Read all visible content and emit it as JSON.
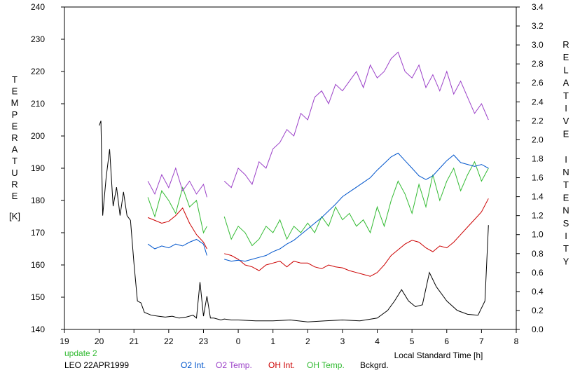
{
  "chart_data": {
    "type": "line",
    "xlabel": "Local Standard Time [h]",
    "ylabel_left": "TEMPERATURE",
    "ylabel_left_unit": "[K]",
    "ylabel_right": "RELATIVE INTENSITY",
    "x_axis": {
      "range": [
        19,
        8
      ],
      "ticks": [
        19,
        20,
        21,
        22,
        23,
        0,
        1,
        2,
        3,
        4,
        5,
        6,
        7,
        8
      ]
    },
    "y_left": {
      "range": [
        140,
        240
      ],
      "ticks": [
        140,
        150,
        160,
        170,
        180,
        190,
        200,
        210,
        220,
        230,
        240
      ]
    },
    "y_right": {
      "range": [
        0.0,
        3.4
      ],
      "ticks": [
        "0.0",
        "0.2",
        "0.4",
        "0.6",
        "0.8",
        "1.0",
        "1.2",
        "1.4",
        "1.6",
        "1.8",
        "2.0",
        "2.2",
        "2.4",
        "2.6",
        "2.8",
        "3.0",
        "3.2",
        "3.4"
      ]
    },
    "grid": false,
    "footer": {
      "status": "update 2",
      "station": "LEO 22APR1999"
    },
    "series": [
      {
        "name": "O2 Int.",
        "axis": "right",
        "color": "#0055cc",
        "x": [
          21.4,
          21.6,
          21.8,
          22.0,
          22.2,
          22.4,
          22.6,
          22.8,
          23.0,
          23.1,
          null,
          23.6,
          23.8,
          24.0,
          24.2,
          24.4,
          24.6,
          24.8,
          25.0,
          25.2,
          25.4,
          25.6,
          25.8,
          26.0,
          26.2,
          26.4,
          26.6,
          26.8,
          27.0,
          27.2,
          27.4,
          27.6,
          27.8,
          28.0,
          28.2,
          28.4,
          28.6,
          28.8,
          29.0,
          29.2,
          29.4,
          29.6,
          29.8,
          30.0,
          30.2,
          30.4,
          30.6,
          30.8,
          31.0,
          31.2
        ],
        "y": [
          0.9,
          0.85,
          0.88,
          0.86,
          0.9,
          0.88,
          0.92,
          0.95,
          0.9,
          0.78,
          null,
          0.74,
          0.72,
          0.73,
          0.72,
          0.74,
          0.76,
          0.78,
          0.82,
          0.85,
          0.9,
          0.94,
          1.0,
          1.06,
          1.12,
          1.18,
          1.25,
          1.32,
          1.4,
          1.45,
          1.5,
          1.55,
          1.6,
          1.68,
          1.75,
          1.82,
          1.86,
          1.78,
          1.7,
          1.62,
          1.58,
          1.62,
          1.7,
          1.78,
          1.84,
          1.76,
          1.74,
          1.72,
          1.74,
          1.7
        ]
      },
      {
        "name": "O2 Temp.",
        "axis": "left",
        "color": "#9b40c8",
        "x": [
          21.4,
          21.6,
          21.8,
          22.0,
          22.2,
          22.4,
          22.6,
          22.8,
          23.0,
          23.1,
          null,
          23.6,
          23.8,
          24.0,
          24.2,
          24.4,
          24.6,
          24.8,
          25.0,
          25.2,
          25.4,
          25.6,
          25.8,
          26.0,
          26.2,
          26.4,
          26.6,
          26.8,
          27.0,
          27.2,
          27.4,
          27.6,
          27.8,
          28.0,
          28.2,
          28.4,
          28.6,
          28.8,
          29.0,
          29.2,
          29.4,
          29.6,
          29.8,
          30.0,
          30.2,
          30.4,
          30.6,
          30.8,
          31.0,
          31.2
        ],
        "y": [
          186,
          182,
          188,
          184,
          190,
          183,
          186,
          182,
          185,
          181,
          null,
          186,
          184,
          190,
          188,
          185,
          192,
          190,
          196,
          198,
          202,
          200,
          207,
          205,
          212,
          214,
          210,
          216,
          214,
          217,
          220,
          215,
          222,
          218,
          220,
          224,
          226,
          220,
          218,
          222,
          215,
          219,
          214,
          220,
          213,
          217,
          212,
          207,
          210,
          205
        ]
      },
      {
        "name": "OH Int.",
        "axis": "right",
        "color": "#cc0000",
        "x": [
          21.4,
          21.6,
          21.8,
          22.0,
          22.2,
          22.4,
          22.6,
          22.8,
          23.0,
          23.1,
          null,
          23.6,
          23.8,
          24.0,
          24.2,
          24.4,
          24.6,
          24.8,
          25.0,
          25.2,
          25.4,
          25.6,
          25.8,
          26.0,
          26.2,
          26.4,
          26.6,
          26.8,
          27.0,
          27.2,
          27.4,
          27.6,
          27.8,
          28.0,
          28.2,
          28.4,
          28.6,
          28.8,
          29.0,
          29.2,
          29.4,
          29.6,
          29.8,
          30.0,
          30.2,
          30.4,
          30.6,
          30.8,
          31.0,
          31.2
        ],
        "y": [
          1.18,
          1.15,
          1.12,
          1.14,
          1.2,
          1.28,
          1.12,
          1.0,
          0.92,
          0.85,
          null,
          0.8,
          0.78,
          0.74,
          0.68,
          0.66,
          0.62,
          0.68,
          0.7,
          0.72,
          0.66,
          0.72,
          0.7,
          0.7,
          0.66,
          0.64,
          0.68,
          0.66,
          0.65,
          0.62,
          0.6,
          0.58,
          0.56,
          0.6,
          0.68,
          0.78,
          0.84,
          0.9,
          0.94,
          0.92,
          0.86,
          0.82,
          0.88,
          0.86,
          0.92,
          1.0,
          1.08,
          1.16,
          1.24,
          1.38
        ]
      },
      {
        "name": "OH Temp.",
        "axis": "left",
        "color": "#33bb33",
        "x": [
          21.4,
          21.6,
          21.8,
          22.0,
          22.2,
          22.4,
          22.6,
          22.8,
          23.0,
          23.1,
          null,
          23.6,
          23.8,
          24.0,
          24.2,
          24.4,
          24.6,
          24.8,
          25.0,
          25.2,
          25.4,
          25.6,
          25.8,
          26.0,
          26.2,
          26.4,
          26.6,
          26.8,
          27.0,
          27.2,
          27.4,
          27.6,
          27.8,
          28.0,
          28.2,
          28.4,
          28.6,
          28.8,
          29.0,
          29.2,
          29.4,
          29.6,
          29.8,
          30.0,
          30.2,
          30.4,
          30.6,
          30.8,
          31.0,
          31.2
        ],
        "y": [
          181,
          175,
          183,
          180,
          176,
          184,
          178,
          180,
          170,
          172,
          null,
          175,
          168,
          172,
          170,
          166,
          168,
          172,
          170,
          174,
          168,
          172,
          170,
          173,
          170,
          175,
          172,
          178,
          174,
          176,
          172,
          174,
          170,
          178,
          172,
          180,
          186,
          182,
          176,
          185,
          178,
          188,
          180,
          186,
          190,
          183,
          188,
          192,
          186,
          190
        ]
      },
      {
        "name": "Bckgrd.",
        "axis": "right",
        "color": "#000000",
        "x": [
          20.0,
          20.05,
          20.1,
          20.2,
          20.3,
          20.4,
          20.5,
          20.6,
          20.7,
          20.8,
          20.9,
          21.0,
          21.1,
          21.2,
          21.3,
          21.5,
          21.7,
          21.9,
          22.1,
          22.3,
          22.5,
          22.7,
          22.8,
          22.9,
          23.0,
          23.1,
          23.2,
          23.3,
          23.4,
          23.5,
          23.6,
          23.8,
          24.0,
          24.5,
          25.0,
          25.5,
          26.0,
          26.5,
          27.0,
          27.5,
          28.0,
          28.3,
          28.5,
          28.7,
          28.9,
          29.1,
          29.3,
          29.5,
          29.7,
          30.0,
          30.3,
          30.6,
          30.9,
          31.1,
          31.2
        ],
        "y": [
          2.15,
          2.2,
          1.2,
          1.6,
          1.9,
          1.3,
          1.5,
          1.2,
          1.45,
          1.2,
          1.15,
          0.7,
          0.3,
          0.28,
          0.18,
          0.15,
          0.14,
          0.13,
          0.14,
          0.12,
          0.13,
          0.15,
          0.12,
          0.5,
          0.14,
          0.35,
          0.12,
          0.12,
          0.11,
          0.1,
          0.11,
          0.1,
          0.1,
          0.09,
          0.09,
          0.1,
          0.08,
          0.09,
          0.1,
          0.09,
          0.12,
          0.2,
          0.3,
          0.42,
          0.3,
          0.24,
          0.26,
          0.6,
          0.45,
          0.3,
          0.2,
          0.16,
          0.15,
          0.3,
          1.1
        ]
      }
    ]
  }
}
